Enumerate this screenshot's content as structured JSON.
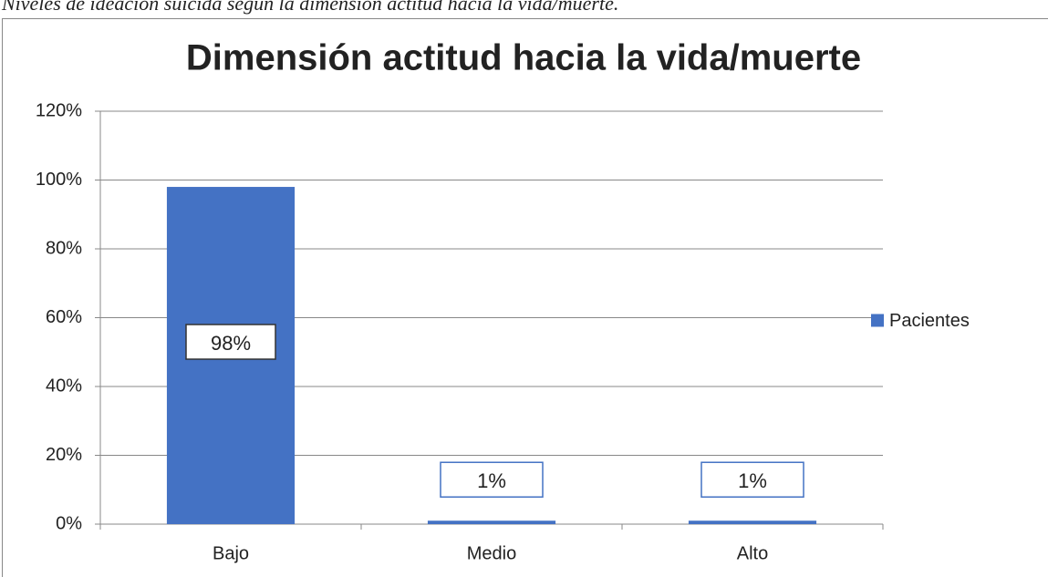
{
  "caption": "Niveles de ideación suicida según la dimensión actitud hacia la vida/muerte.",
  "chart_data": {
    "type": "bar",
    "title": "Dimensión actitud hacia la vida/muerte",
    "categories": [
      "Bajo",
      "Medio",
      "Alto"
    ],
    "series": [
      {
        "name": "Pacientes",
        "color": "#4472c4",
        "values": [
          98,
          1,
          1
        ],
        "value_labels": [
          "98%",
          "1%",
          "1%"
        ]
      }
    ],
    "ylim": [
      0,
      120
    ],
    "yticks": [
      {
        "value": 0,
        "label": "0%"
      },
      {
        "value": 20,
        "label": "20%"
      },
      {
        "value": 40,
        "label": "40%"
      },
      {
        "value": 60,
        "label": "60%"
      },
      {
        "value": 80,
        "label": "80%"
      },
      {
        "value": 100,
        "label": "100%"
      },
      {
        "value": 120,
        "label": "120%"
      }
    ],
    "grid": true,
    "legend": "right"
  }
}
